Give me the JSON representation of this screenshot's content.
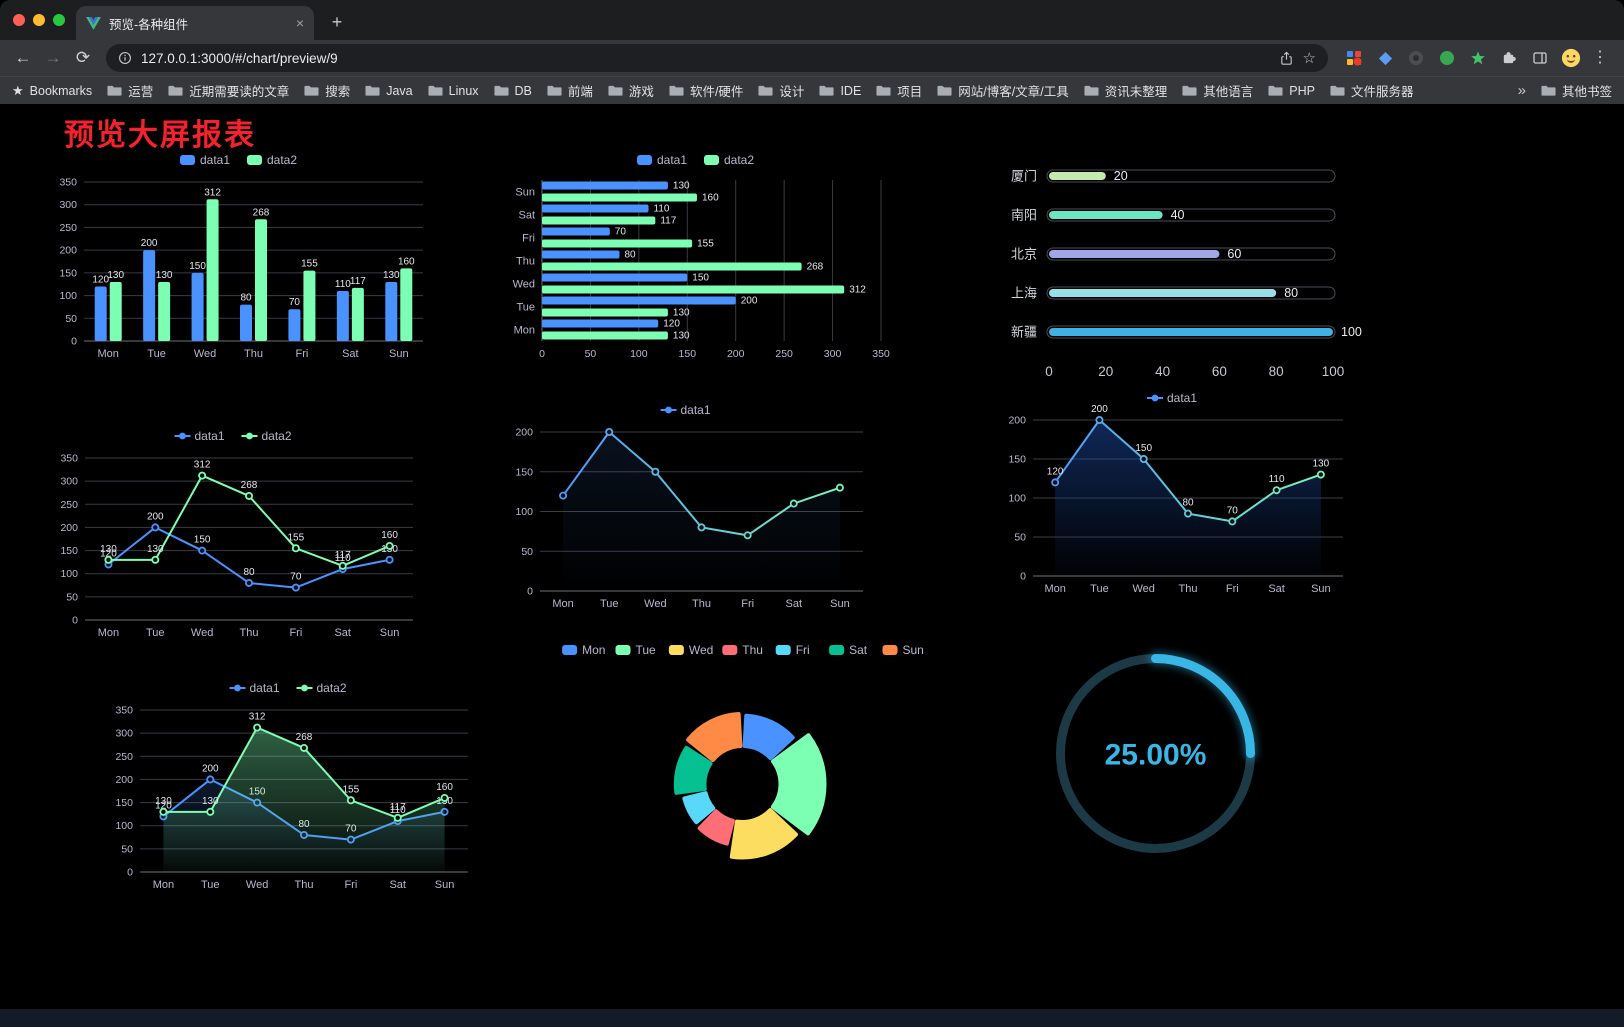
{
  "browser": {
    "tab_title": "预览-各种组件",
    "new_tab_label": "+",
    "url": "127.0.0.1:3000/#/chart/preview/9",
    "bookmarks_bar": {
      "bookmarks_label": "Bookmarks",
      "folders": [
        "运营",
        "近期需要读的文章",
        "搜索",
        "Java",
        "Linux",
        "DB",
        "前端",
        "游戏",
        "软件/硬件",
        "设计",
        "IDE",
        "项目",
        "网站/博客/文章/工具",
        "资讯未整理",
        "其他语言",
        "PHP",
        "文件服务器"
      ],
      "overflow": "»",
      "other_bookmarks": "其他书签"
    }
  },
  "page": {
    "title": "预览大屏报表",
    "title_color": "#f5222d",
    "background": "#000000"
  },
  "chart_data": [
    {
      "type": "bar",
      "categories": [
        "Mon",
        "Tue",
        "Wed",
        "Thu",
        "Fri",
        "Sat",
        "Sun"
      ],
      "ylim": [
        0,
        350
      ],
      "ystep": 50,
      "labels": true,
      "series": [
        {
          "name": "data1",
          "color": "#4992ff",
          "values": [
            120,
            200,
            150,
            80,
            70,
            110,
            130
          ]
        },
        {
          "name": "data2",
          "color": "#7cffb2",
          "values": [
            130,
            130,
            312,
            268,
            155,
            117,
            160
          ]
        }
      ]
    },
    {
      "type": "hbar",
      "categories": [
        "Mon",
        "Tue",
        "Wed",
        "Thu",
        "Fri",
        "Sat",
        "Sun"
      ],
      "xlim": [
        0,
        350
      ],
      "xstep": 50,
      "labels": true,
      "series": [
        {
          "name": "data1",
          "color": "#4992ff",
          "values": [
            120,
            200,
            150,
            80,
            70,
            110,
            130
          ]
        },
        {
          "name": "data2",
          "color": "#7cffb2",
          "values": [
            130,
            130,
            312,
            268,
            155,
            117,
            160
          ]
        }
      ]
    },
    {
      "type": "progress",
      "xticks": [
        0,
        20,
        40,
        60,
        80,
        100
      ],
      "items": [
        {
          "label": "厦门",
          "value": 20,
          "color": "#c4ebad"
        },
        {
          "label": "南阳",
          "value": 40,
          "color": "#6be6c1"
        },
        {
          "label": "北京",
          "value": 60,
          "color": "#a0a7e6"
        },
        {
          "label": "上海",
          "value": 80,
          "color": "#96dee8"
        },
        {
          "label": "新疆",
          "value": 100,
          "color": "#3fb1e3"
        }
      ]
    },
    {
      "type": "line",
      "categories": [
        "Mon",
        "Tue",
        "Wed",
        "Thu",
        "Fri",
        "Sat",
        "Sun"
      ],
      "ylim": [
        0,
        350
      ],
      "ystep": 50,
      "labels": true,
      "series": [
        {
          "name": "data1",
          "color": "#4992ff",
          "values": [
            120,
            200,
            150,
            80,
            70,
            110,
            130
          ]
        },
        {
          "name": "data2",
          "color": "#7cffb2",
          "values": [
            130,
            130,
            312,
            268,
            155,
            117,
            160
          ]
        }
      ]
    },
    {
      "type": "line",
      "categories": [
        "Mon",
        "Tue",
        "Wed",
        "Thu",
        "Fri",
        "Sat",
        "Sun"
      ],
      "ylim": [
        0,
        200
      ],
      "ystep": 50,
      "labels": false,
      "series": [
        {
          "name": "data1",
          "gradient": [
            "#4992ff",
            "#7cffb2"
          ],
          "area": [
            "rgba(73,146,255,0.12)",
            "rgba(73,146,255,0)"
          ],
          "values": [
            120,
            200,
            150,
            80,
            70,
            110,
            130
          ]
        }
      ]
    },
    {
      "type": "line",
      "categories": [
        "Mon",
        "Tue",
        "Wed",
        "Thu",
        "Fri",
        "Sat",
        "Sun"
      ],
      "ylim": [
        0,
        200
      ],
      "ystep": 50,
      "labels": true,
      "series": [
        {
          "name": "data1",
          "gradient": [
            "#4992ff",
            "#7cffb2"
          ],
          "area": [
            "rgba(28,74,160,0.55)",
            "rgba(28,74,160,0.02)"
          ],
          "values": [
            120,
            200,
            150,
            80,
            70,
            110,
            130
          ]
        }
      ]
    },
    {
      "type": "line",
      "categories": [
        "Mon",
        "Tue",
        "Wed",
        "Thu",
        "Fri",
        "Sat",
        "Sun"
      ],
      "ylim": [
        0,
        350
      ],
      "ystep": 50,
      "labels": true,
      "series": [
        {
          "name": "data1",
          "color": "#4992ff",
          "area": [
            "rgba(73,146,255,0.18)",
            "rgba(73,146,255,0)"
          ],
          "values": [
            120,
            200,
            150,
            80,
            70,
            110,
            130
          ]
        },
        {
          "name": "data2",
          "color": "#7cffb2",
          "area": [
            "rgba(124,255,178,0.38)",
            "rgba(124,255,178,0.04)"
          ],
          "values": [
            130,
            130,
            312,
            268,
            155,
            117,
            160
          ]
        }
      ]
    },
    {
      "type": "donut",
      "items": [
        {
          "label": "Mon",
          "value": 120,
          "color": "#4992ff"
        },
        {
          "label": "Tue",
          "value": 200,
          "color": "#7cffb2"
        },
        {
          "label": "Wed",
          "value": 150,
          "color": "#fddd60"
        },
        {
          "label": "Thu",
          "value": 80,
          "color": "#ff6e76"
        },
        {
          "label": "Fri",
          "value": 70,
          "color": "#58d9f9"
        },
        {
          "label": "Sat",
          "value": 110,
          "color": "#05c091"
        },
        {
          "label": "Sun",
          "value": 130,
          "color": "#ff8a45"
        }
      ]
    },
    {
      "type": "gauge",
      "value": 25,
      "label": "25.00%",
      "color": "#38b6e6",
      "track": "#1c3a46"
    }
  ]
}
